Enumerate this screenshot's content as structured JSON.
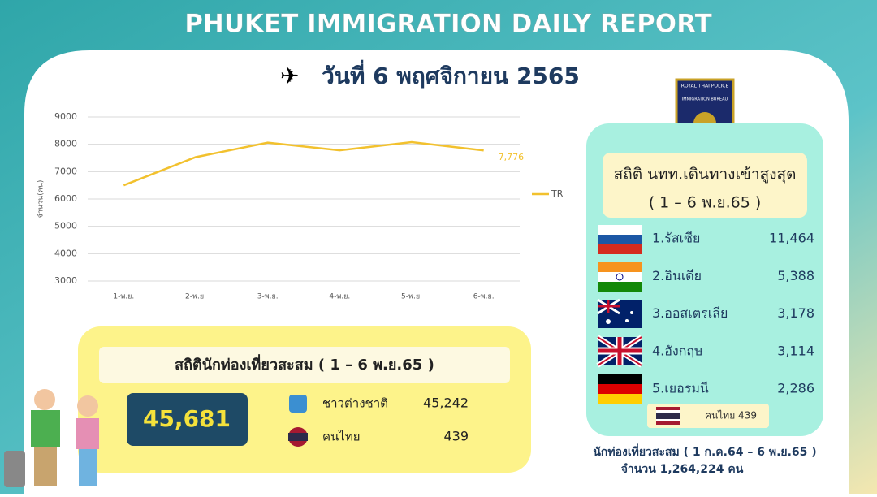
{
  "header": {
    "title": "PHUKET IMMIGRATION DAILY REPORT",
    "date": "วันที่  6  พฤศจิกายน  2565"
  },
  "chart_data": {
    "type": "line",
    "y_label": "จำนวน(คน)",
    "categories": [
      "1-พ.ย.",
      "2-พ.ย.",
      "3-พ.ย.",
      "4-พ.ย.",
      "5-พ.ย.",
      "6-พ.ย."
    ],
    "series": [
      {
        "name": "TR",
        "color": "#f2c12e",
        "values": [
          6500,
          7530,
          8060,
          7780,
          8080,
          7776
        ],
        "value_labels": [
          null,
          null,
          null,
          null,
          null,
          "7,776"
        ]
      }
    ],
    "ylim": [
      3000,
      9000
    ],
    "yticks": [
      3000,
      4000,
      5000,
      6000,
      7000,
      8000,
      9000
    ],
    "grid": true,
    "legend": "right"
  },
  "badge": {
    "line1": "ROYAL THAI POLICE",
    "line2": "IMMIGRATION BUREAU"
  },
  "top_panel": {
    "title": "สถิติ นทท.เดินทางเข้าสูงสุด",
    "period": "( 1 – 6 พ.ย.65 )",
    "rows": [
      [
        "1.รัสเซีย",
        "11,464"
      ],
      [
        "2.อินเดีย",
        "5,388"
      ],
      [
        "3.ออสเตรเลีย",
        "3,178"
      ],
      [
        "4.อังกฤษ",
        "3,114"
      ],
      [
        "5.เยอรมนี",
        "2,286"
      ]
    ],
    "thai": "คนไทย 439"
  },
  "cumulative": {
    "title": "สถิตินักท่องเที่ยวสะสม ( 1 – 6 พ.ย.65 )",
    "total": "45,681",
    "foreign_label": "ชาวต่างชาติ",
    "foreign": "45,242",
    "thai_label": "คนไทย",
    "thai": "439"
  },
  "footer": {
    "line1": "นักท่องเที่ยวสะสม ( 1 ก.ค.64 – 6 พ.ย.65 )",
    "line2": "จำนวน 1,264,224 คน"
  }
}
